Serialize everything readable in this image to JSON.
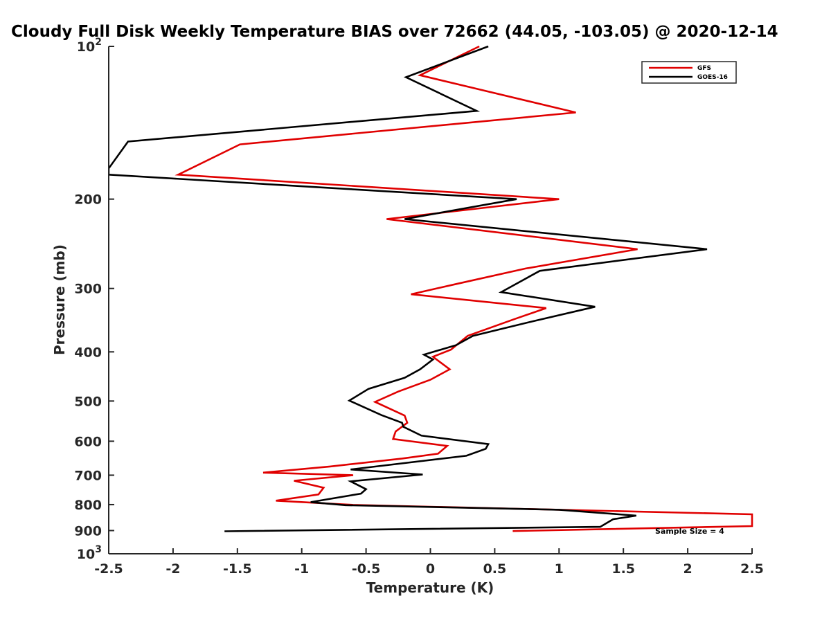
{
  "chart_data": {
    "type": "line",
    "title": "Cloudy Full Disk Weekly Temperature BIAS over 72662 (44.05, -103.05) @ 2020-12-14",
    "xlabel": "Temperature (K)",
    "ylabel": "Pressure (mb)",
    "xlim": [
      -2.5,
      2.5
    ],
    "ylim": [
      100,
      1000
    ],
    "y_scale": "log",
    "y_reversed": true,
    "x_ticks": [
      -2.5,
      -2,
      -1.5,
      -1,
      -0.5,
      0,
      0.5,
      1,
      1.5,
      2,
      2.5
    ],
    "x_tick_labels": [
      "-2.5",
      "-2",
      "-1.5",
      "-1",
      "-0.5",
      "0",
      "0.5",
      "1",
      "1.5",
      "2",
      "2.5"
    ],
    "y_ticks": [
      100,
      200,
      300,
      400,
      500,
      600,
      700,
      800,
      900,
      1000
    ],
    "y_tick_labels": [
      {
        "base": "10",
        "exp": "2"
      },
      {
        "base": "200",
        "exp": ""
      },
      {
        "base": "300",
        "exp": ""
      },
      {
        "base": "400",
        "exp": ""
      },
      {
        "base": "500",
        "exp": ""
      },
      {
        "base": "600",
        "exp": ""
      },
      {
        "base": "700",
        "exp": ""
      },
      {
        "base": "800",
        "exp": ""
      },
      {
        "base": "900",
        "exp": ""
      },
      {
        "base": "10",
        "exp": "3"
      }
    ],
    "grid": false,
    "legend_position": "top-right",
    "annotation": "Sample Size = 4",
    "series": [
      {
        "name": "GFS",
        "color": "#e00000",
        "points": [
          [
            0.38,
            100
          ],
          [
            -0.08,
            114
          ],
          [
            1.13,
            135
          ],
          [
            -1.48,
            156
          ],
          [
            -1.96,
            179
          ],
          [
            1.0,
            200
          ],
          [
            -0.34,
            219
          ],
          [
            1.61,
            251
          ],
          [
            0.74,
            274
          ],
          [
            0.2,
            294
          ],
          [
            -0.15,
            308
          ],
          [
            0.9,
            328
          ],
          [
            0.65,
            345
          ],
          [
            0.29,
            372
          ],
          [
            0.16,
            396
          ],
          [
            0.02,
            409
          ],
          [
            0.15,
            433
          ],
          [
            0.0,
            454
          ],
          [
            -0.25,
            479
          ],
          [
            -0.43,
            502
          ],
          [
            -0.2,
            534
          ],
          [
            -0.18,
            552
          ],
          [
            -0.27,
            574
          ],
          [
            -0.29,
            594
          ],
          [
            0.13,
            613
          ],
          [
            0.06,
            635
          ],
          [
            -0.22,
            649
          ],
          [
            -0.78,
            673
          ],
          [
            -1.3,
            692
          ],
          [
            -0.6,
            700
          ],
          [
            -1.06,
            718
          ],
          [
            -0.83,
            741
          ],
          [
            -0.87,
            764
          ],
          [
            -1.2,
            786
          ],
          [
            -0.6,
            801
          ],
          [
            2.5,
            836
          ],
          [
            2.5,
            882
          ],
          [
            0.64,
            902
          ]
        ]
      },
      {
        "name": "GOES-16",
        "color": "#000000",
        "points": [
          [
            0.45,
            100
          ],
          [
            -0.19,
            115
          ],
          [
            0.36,
            134
          ],
          [
            -2.35,
            154
          ],
          [
            -2.5,
            174
          ],
          [
            -2.5,
            179
          ],
          [
            0.67,
            200
          ],
          [
            -0.2,
            219
          ],
          [
            2.15,
            251
          ],
          [
            0.85,
            277
          ],
          [
            0.55,
            305
          ],
          [
            1.28,
            326
          ],
          [
            0.8,
            348
          ],
          [
            0.33,
            372
          ],
          [
            0.2,
            388
          ],
          [
            -0.05,
            405
          ],
          [
            0.02,
            414
          ],
          [
            -0.08,
            433
          ],
          [
            -0.2,
            450
          ],
          [
            -0.48,
            473
          ],
          [
            -0.63,
            499
          ],
          [
            -0.38,
            533
          ],
          [
            -0.22,
            552
          ],
          [
            -0.21,
            562
          ],
          [
            -0.07,
            585
          ],
          [
            0.45,
            608
          ],
          [
            0.43,
            621
          ],
          [
            0.28,
            641
          ],
          [
            -0.62,
            682
          ],
          [
            -0.06,
            698
          ],
          [
            -0.62,
            720
          ],
          [
            -0.5,
            746
          ],
          [
            -0.54,
            761
          ],
          [
            -0.93,
            791
          ],
          [
            -0.66,
            802
          ],
          [
            1.0,
            819
          ],
          [
            1.6,
            841
          ],
          [
            1.42,
            855
          ],
          [
            1.32,
            885
          ],
          [
            -1.6,
            903
          ]
        ]
      }
    ]
  }
}
